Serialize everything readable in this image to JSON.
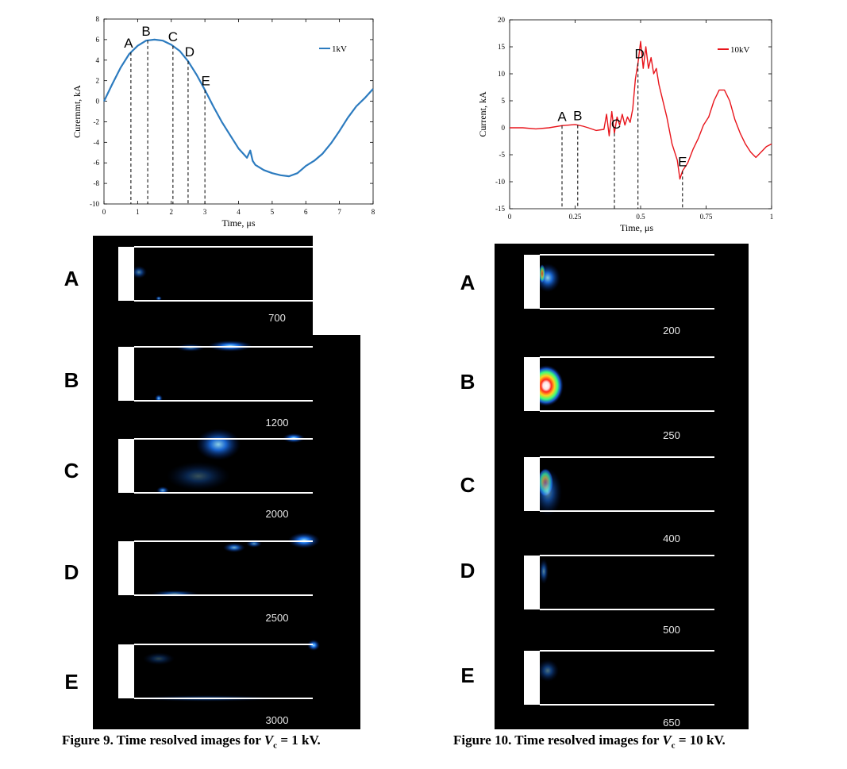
{
  "chart_data": [
    {
      "type": "line",
      "xlabel": "Time, μs",
      "ylabel": "Curernmt, kA",
      "xlim": [
        0,
        8
      ],
      "ylim": [
        -10,
        8
      ],
      "xticks": [
        0,
        1,
        2,
        3,
        4,
        5,
        6,
        7,
        8
      ],
      "yticks": [
        8,
        6,
        4,
        2,
        0,
        -2,
        -4,
        -6,
        -8,
        -10
      ],
      "legend": "top-right",
      "series": [
        {
          "name": "1kV",
          "color": "#2c7bbf",
          "x": [
            0,
            0.25,
            0.5,
            0.75,
            1.0,
            1.25,
            1.5,
            1.75,
            2.0,
            2.25,
            2.5,
            2.75,
            3.0,
            3.25,
            3.5,
            3.75,
            4.0,
            4.25,
            4.35,
            4.42,
            4.5,
            4.75,
            5.0,
            5.25,
            5.5,
            5.75,
            6.0,
            6.25,
            6.5,
            6.75,
            7.0,
            7.25,
            7.5,
            7.75,
            8.0
          ],
          "y": [
            0,
            1.7,
            3.3,
            4.6,
            5.4,
            5.9,
            6.0,
            5.9,
            5.5,
            4.9,
            3.9,
            2.6,
            1.1,
            -0.5,
            -2.0,
            -3.3,
            -4.6,
            -5.5,
            -4.8,
            -5.8,
            -6.2,
            -6.7,
            -7.0,
            -7.2,
            -7.3,
            -7.0,
            -6.3,
            -5.8,
            -5.1,
            -4.1,
            -2.9,
            -1.6,
            -0.5,
            0.3,
            1.2
          ]
        }
      ],
      "markers": [
        {
          "label": "A",
          "x": 0.8
        },
        {
          "label": "B",
          "x": 1.3
        },
        {
          "label": "C",
          "x": 2.05
        },
        {
          "label": "D",
          "x": 2.5
        },
        {
          "label": "E",
          "x": 3.0
        }
      ]
    },
    {
      "type": "line",
      "xlabel": "Time, μs",
      "ylabel": "Current, kA",
      "xlim": [
        0,
        1
      ],
      "ylim": [
        -15,
        20
      ],
      "xticks": [
        0,
        0.25,
        0.5,
        0.75,
        1
      ],
      "yticks": [
        20,
        15,
        10,
        5,
        0,
        -5,
        -10,
        -15
      ],
      "legend": "top-right",
      "series": [
        {
          "name": "10kV",
          "color": "#e8141b",
          "x": [
            0,
            0.05,
            0.1,
            0.15,
            0.2,
            0.25,
            0.28,
            0.3,
            0.33,
            0.36,
            0.37,
            0.38,
            0.39,
            0.4,
            0.41,
            0.42,
            0.43,
            0.44,
            0.45,
            0.46,
            0.47,
            0.48,
            0.49,
            0.5,
            0.51,
            0.52,
            0.53,
            0.54,
            0.55,
            0.56,
            0.57,
            0.58,
            0.6,
            0.62,
            0.64,
            0.65,
            0.66,
            0.68,
            0.7,
            0.72,
            0.74,
            0.76,
            0.78,
            0.8,
            0.82,
            0.84,
            0.86,
            0.88,
            0.9,
            0.92,
            0.94,
            0.96,
            0.98,
            1.0
          ],
          "y": [
            0,
            0,
            -0.2,
            0,
            0.4,
            0.6,
            0.3,
            0,
            -0.5,
            -0.3,
            2.5,
            -1.5,
            3.0,
            -1.0,
            2.0,
            0.5,
            2.5,
            0.5,
            2.0,
            1.0,
            3.5,
            9.0,
            12.0,
            16.0,
            11.0,
            15.0,
            11.0,
            13.0,
            10.0,
            11.0,
            8.0,
            6.0,
            2.0,
            -3.0,
            -6.0,
            -9.5,
            -8.0,
            -6.5,
            -4.0,
            -2.0,
            0.5,
            2.0,
            5.0,
            7.0,
            7.0,
            5.0,
            1.5,
            -1.0,
            -3.0,
            -4.5,
            -5.5,
            -4.5,
            -3.5,
            -3.0
          ]
        }
      ],
      "markers": [
        {
          "label": "A",
          "x": 0.2
        },
        {
          "label": "B",
          "x": 0.26
        },
        {
          "label": "C",
          "x": 0.4
        },
        {
          "label": "D",
          "x": 0.49
        },
        {
          "label": "E",
          "x": 0.66
        }
      ]
    }
  ],
  "figure9": {
    "rows": [
      {
        "label": "A",
        "value": "700"
      },
      {
        "label": "B",
        "value": "1200"
      },
      {
        "label": "C",
        "value": "2000"
      },
      {
        "label": "D",
        "value": "2500"
      },
      {
        "label": "E",
        "value": "3000"
      }
    ],
    "caption_prefix": "Figure 9. Time resolved images for ",
    "caption_var": "V",
    "caption_sub": "c",
    "caption_suffix": " = 1 kV."
  },
  "figure10": {
    "rows": [
      {
        "label": "A",
        "value": "200"
      },
      {
        "label": "B",
        "value": "250"
      },
      {
        "label": "C",
        "value": "400"
      },
      {
        "label": "D",
        "value": "500"
      },
      {
        "label": "E",
        "value": "650"
      }
    ],
    "caption_prefix": "Figure 10. Time resolved images for ",
    "caption_var": "V",
    "caption_sub": "c",
    "caption_suffix": " = 10 kV."
  }
}
